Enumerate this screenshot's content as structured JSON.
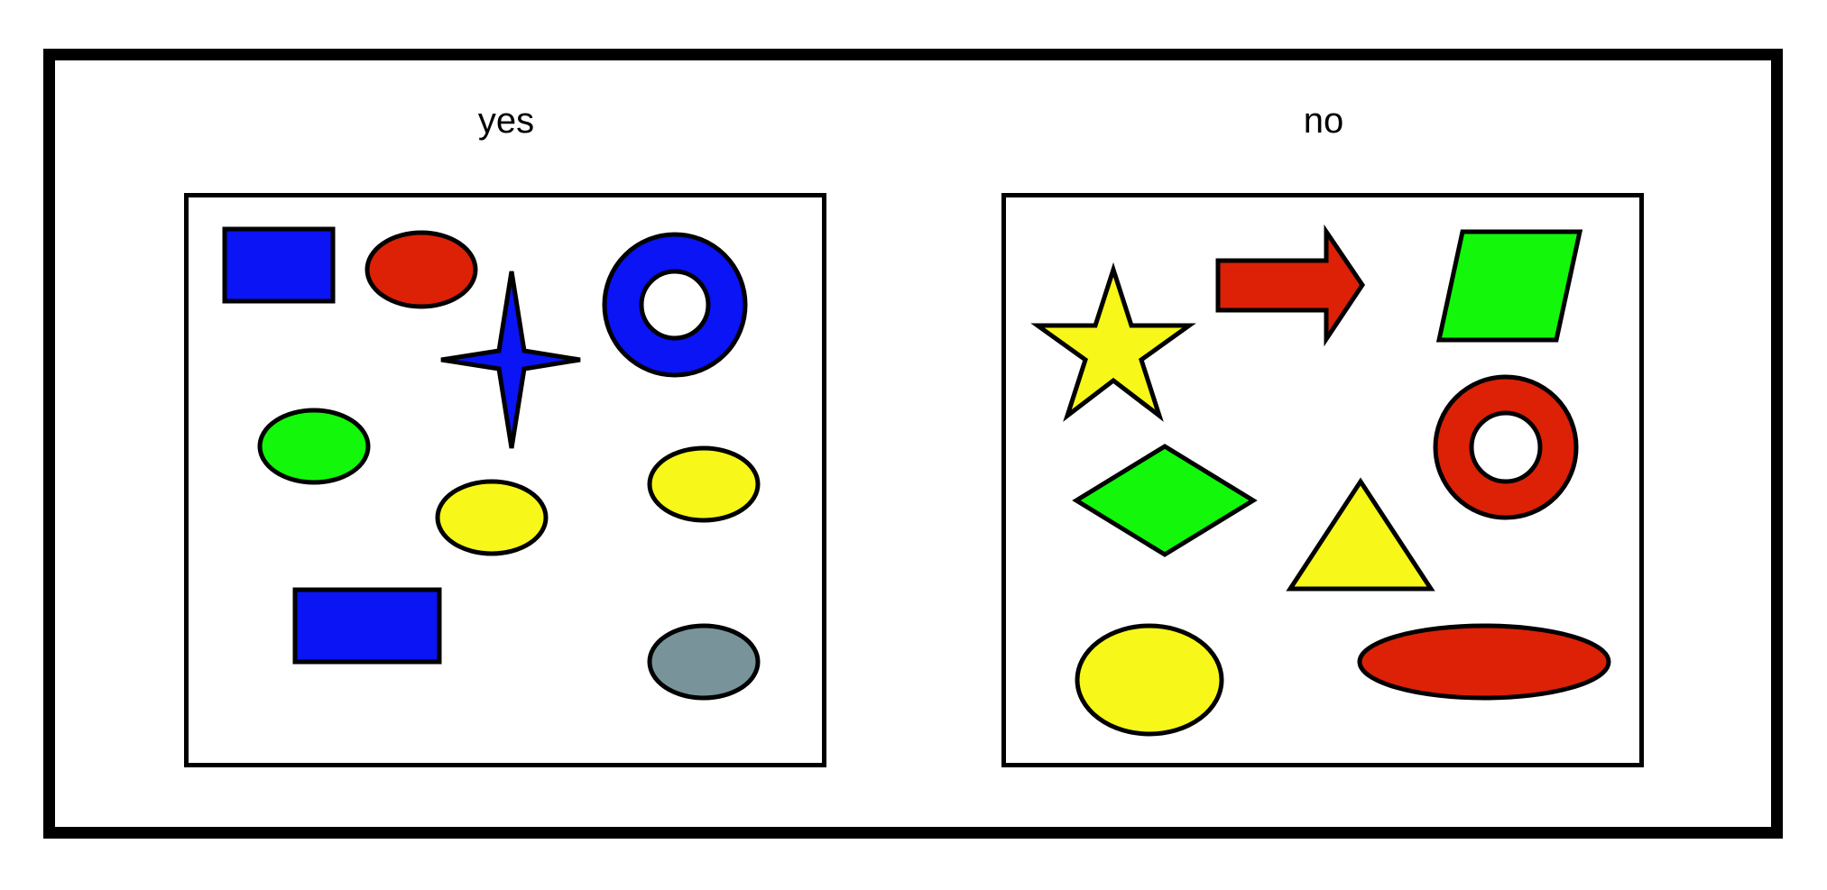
{
  "yes_panel": {
    "label": "yes",
    "shapes": [
      {
        "kind": "rectangle",
        "color": "#0a14f5",
        "icon": "blue-rectangle-icon"
      },
      {
        "kind": "ellipse",
        "color": "#dd2106",
        "icon": "red-ellipse-icon"
      },
      {
        "kind": "four-point-star",
        "color": "#0a14f5",
        "icon": "blue-four-point-star-icon"
      },
      {
        "kind": "ring",
        "color": "#0a14f5",
        "icon": "blue-ring-icon"
      },
      {
        "kind": "ellipse",
        "color": "#13f70b",
        "icon": "green-ellipse-icon"
      },
      {
        "kind": "ellipse",
        "color": "#f7f719",
        "icon": "yellow-ellipse-icon"
      },
      {
        "kind": "ellipse",
        "color": "#f7f719",
        "icon": "yellow-ellipse-icon"
      },
      {
        "kind": "rectangle",
        "color": "#0a14f5",
        "icon": "blue-rectangle-icon"
      },
      {
        "kind": "ellipse",
        "color": "#78949a",
        "icon": "gray-ellipse-icon"
      }
    ]
  },
  "no_panel": {
    "label": "no",
    "shapes": [
      {
        "kind": "star",
        "color": "#f7f719",
        "icon": "yellow-star-icon"
      },
      {
        "kind": "arrow",
        "color": "#dd2106",
        "icon": "red-arrow-icon"
      },
      {
        "kind": "parallelogram",
        "color": "#13f70b",
        "icon": "green-parallelogram-icon"
      },
      {
        "kind": "ring",
        "color": "#dd2106",
        "icon": "red-ring-icon"
      },
      {
        "kind": "diamond",
        "color": "#13f70b",
        "icon": "green-diamond-icon"
      },
      {
        "kind": "triangle",
        "color": "#f7f719",
        "icon": "yellow-triangle-icon"
      },
      {
        "kind": "ellipse",
        "color": "#f7f719",
        "icon": "yellow-ellipse-icon"
      },
      {
        "kind": "ellipse",
        "color": "#dd2106",
        "icon": "red-ellipse-icon"
      }
    ]
  }
}
